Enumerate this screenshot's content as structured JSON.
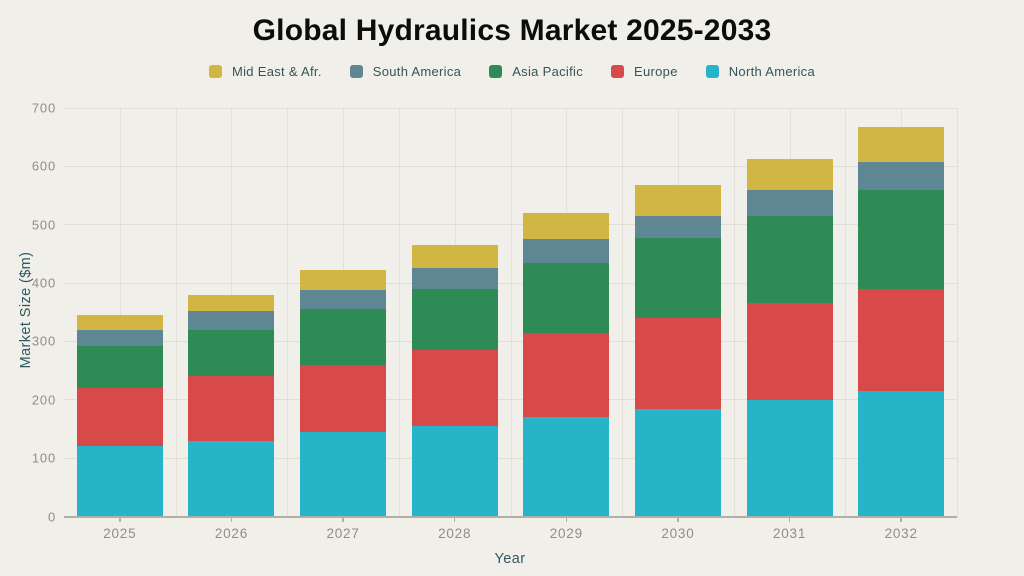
{
  "chart_data": {
    "type": "bar",
    "stacked": true,
    "title": "Global Hydraulics Market 2025-2033",
    "xlabel": "Year",
    "ylabel": "Market Size ($m)",
    "categories": [
      "2025",
      "2026",
      "2027",
      "2028",
      "2029",
      "2030",
      "2031",
      "2032"
    ],
    "series": [
      {
        "name": "North America",
        "color": "#25b4c8",
        "values": [
          120,
          130,
          145,
          155,
          170,
          185,
          200,
          215
        ]
      },
      {
        "name": "Europe",
        "color": "#d84a4a",
        "values": [
          100,
          110,
          115,
          130,
          145,
          155,
          165,
          175
        ]
      },
      {
        "name": "Asia Pacific",
        "color": "#2f8b55",
        "values": [
          72,
          80,
          95,
          105,
          120,
          138,
          150,
          170
        ]
      },
      {
        "name": "South America",
        "color": "#5e8793",
        "values": [
          28,
          32,
          33,
          35,
          40,
          37,
          45,
          48
        ]
      },
      {
        "name": "Mid East & Afr.",
        "color": "#d2b643",
        "values": [
          25,
          28,
          34,
          40,
          45,
          53,
          53,
          60
        ]
      }
    ],
    "totals": [
      345,
      380,
      422,
      465,
      520,
      568,
      613,
      668
    ],
    "legend": [
      "Mid East & Afr.",
      "South America",
      "Asia Pacific",
      "Europe",
      "North America"
    ],
    "legend_position": "top",
    "ylim": [
      0,
      700
    ],
    "yticks": [
      0,
      100,
      200,
      300,
      400,
      500,
      600,
      700
    ],
    "grid": true,
    "background_color": "#f0efe9",
    "gridline_color": "#e1dfd5",
    "axis_text_color": "#8f8e86",
    "axis_title_color": "#2e5a61",
    "title_color": "#0c0c0c"
  }
}
